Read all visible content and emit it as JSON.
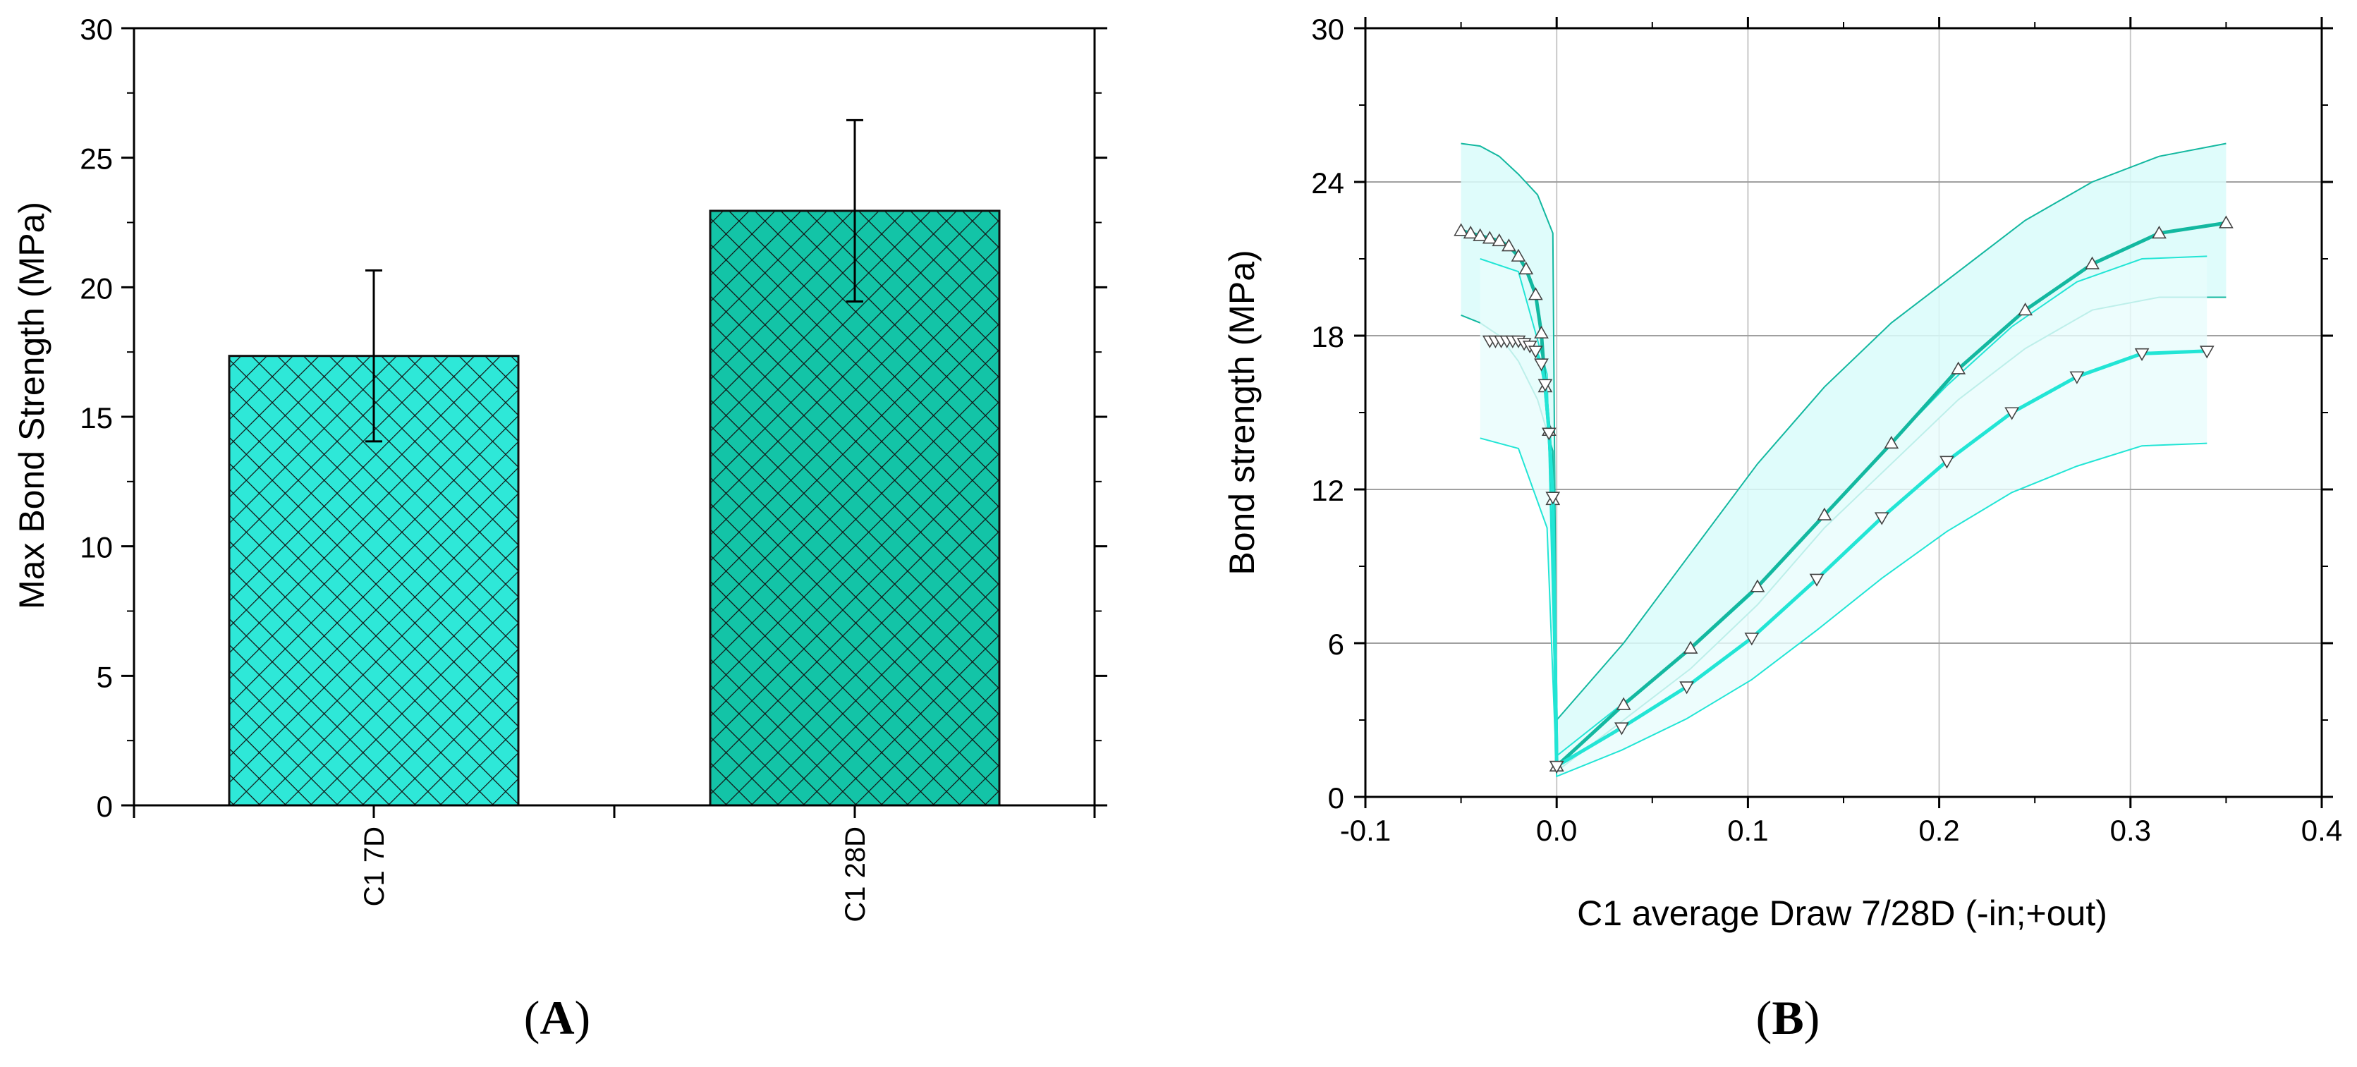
{
  "chart_data": [
    {
      "type": "bar",
      "panel_label": "A",
      "title": "",
      "xlabel": "",
      "ylabel": "Max Bond Strength (MPa)",
      "ylim": [
        0,
        30
      ],
      "yticks": [
        "0",
        "5",
        "10",
        "15",
        "20",
        "25",
        "30"
      ],
      "categories": [
        "C1 7D",
        "C1 28D"
      ],
      "values": [
        17.35,
        22.95
      ],
      "errors": [
        3.3,
        3.5
      ],
      "colors": [
        "#2ee8d8",
        "#13c4a7"
      ],
      "pattern": "crosshatch"
    },
    {
      "type": "line",
      "panel_label": "B",
      "title": "",
      "xlabel": "C1 average Draw 7/28D (-in;+out)",
      "ylabel": "Bond strength (MPa)",
      "xlim": [
        -0.1,
        0.4
      ],
      "ylim": [
        0,
        30
      ],
      "xticks": [
        "-0.1",
        "0.0",
        "0.1",
        "0.2",
        "0.3",
        "0.4"
      ],
      "yticks": [
        "0",
        "6",
        "12",
        "18",
        "24",
        "30"
      ],
      "grid": true,
      "series": [
        {
          "name": "C1 28D",
          "color": "#13b8a0",
          "marker": "triangle-up",
          "x": [
            0.0,
            0.035,
            0.07,
            0.105,
            0.14,
            0.175,
            0.21,
            0.245,
            0.28,
            0.315,
            0.35
          ],
          "y": [
            1.2,
            3.6,
            5.8,
            8.2,
            11.0,
            13.8,
            16.7,
            19.0,
            20.8,
            22.0,
            22.4
          ],
          "x_in": [
            0.0,
            -0.002,
            -0.004,
            -0.006,
            -0.008,
            -0.011,
            -0.016,
            -0.02,
            -0.025,
            -0.03,
            -0.035,
            -0.04,
            -0.045,
            -0.05
          ],
          "y_in": [
            1.2,
            11.6,
            14.3,
            16.0,
            18.1,
            19.6,
            20.6,
            21.1,
            21.5,
            21.7,
            21.8,
            21.9,
            22.0,
            22.1
          ],
          "band_upper": [
            25.5,
            25.4,
            25.0,
            24.3,
            23.5,
            22.0,
            3.0,
            6.0,
            9.5,
            13.0,
            16.0,
            18.5,
            20.5,
            22.5,
            24.0,
            25.0,
            25.5
          ],
          "band_lower": [
            18.8,
            18.5,
            18.0,
            17.0,
            15.5,
            13.5,
            1.0,
            3.0,
            5.0,
            7.5,
            10.5,
            13.0,
            15.5,
            17.5,
            19.0,
            19.5,
            19.5
          ]
        },
        {
          "name": "C1 7D",
          "color": "#22e5d5",
          "marker": "triangle-down",
          "x": [
            0.0,
            0.034,
            0.068,
            0.102,
            0.136,
            0.17,
            0.204,
            0.238,
            0.272,
            0.306,
            0.34
          ],
          "y": [
            1.2,
            2.7,
            4.3,
            6.2,
            8.5,
            10.9,
            13.1,
            15.0,
            16.4,
            17.3,
            17.4
          ],
          "x_in": [
            0.0,
            -0.002,
            -0.004,
            -0.006,
            -0.008,
            -0.011,
            -0.014,
            -0.017,
            -0.02,
            -0.023,
            -0.026,
            -0.029,
            -0.032,
            -0.035
          ],
          "y_in": [
            1.2,
            11.7,
            14.2,
            16.1,
            16.9,
            17.4,
            17.6,
            17.7,
            17.8,
            17.8,
            17.8,
            17.8,
            17.8,
            17.8
          ],
          "band_upper": [
            21.0
          ],
          "band_lower": [
            14.0
          ]
        }
      ]
    }
  ]
}
